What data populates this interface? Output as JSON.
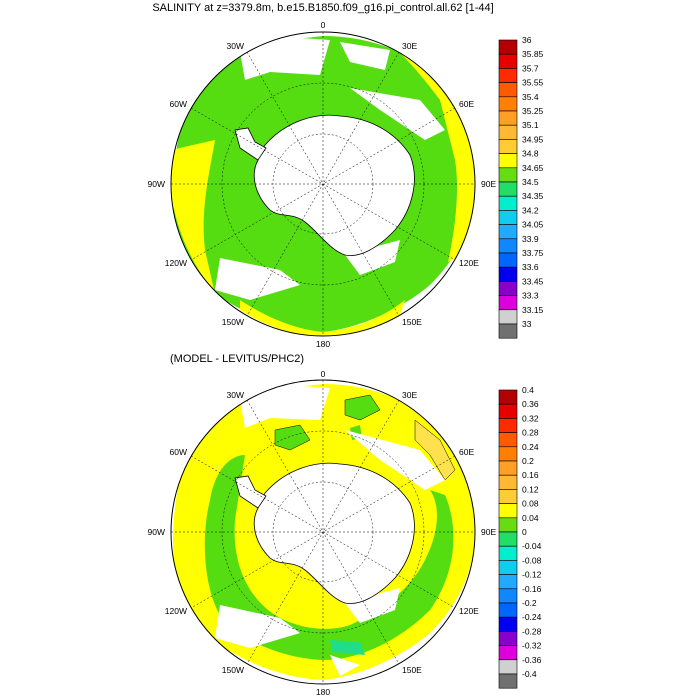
{
  "panels": [
    {
      "title": "SALINITY at z=3379.8m, b.e15.B1850.f09_g16.pi_control.all.62 [1-44]",
      "lon_labels": {
        "top": "0",
        "ne": "30E",
        "e1": "60E",
        "e2": "90E",
        "e3": "120E",
        "se": "150E",
        "bottom": "180",
        "sw": "150W",
        "w3": "120W",
        "w2": "90W",
        "w1": "60W",
        "nw": "30W"
      },
      "colorbar": {
        "labels": [
          "36",
          "35.85",
          "35.7",
          "35.55",
          "35.4",
          "35.25",
          "35.1",
          "34.95",
          "34.8",
          "34.65",
          "34.5",
          "34.35",
          "34.2",
          "34.05",
          "33.9",
          "33.75",
          "33.6",
          "33.45",
          "33.3",
          "33.15",
          "33"
        ],
        "colors": [
          "#b30000",
          "#e60000",
          "#ff2a00",
          "#ff5a00",
          "#ff8000",
          "#ff9f26",
          "#ffb833",
          "#ffcc33",
          "#ffff00",
          "#66dd11",
          "#22dd66",
          "#00eecc",
          "#11ccee",
          "#22aaff",
          "#1188ff",
          "#0066ff",
          "#0000ee",
          "#8800cc",
          "#dd00dd",
          "#d0d0d0",
          "#707070"
        ]
      }
    },
    {
      "title": "(MODEL - LEVITUS/PHC2)",
      "lon_labels": {
        "top": "0",
        "ne": "30E",
        "e1": "60E",
        "e2": "90E",
        "e3": "120E",
        "se": "150E",
        "bottom": "180",
        "sw": "150W",
        "w3": "120W",
        "w2": "90W",
        "w1": "60W",
        "nw": "30W"
      },
      "colorbar": {
        "labels": [
          "0.4",
          "0.36",
          "0.32",
          "0.28",
          "0.24",
          "0.2",
          "0.16",
          "0.12",
          "0.08",
          "0.04",
          "0",
          "-0.04",
          "-0.08",
          "-0.12",
          "-0.16",
          "-0.2",
          "-0.24",
          "-0.28",
          "-0.32",
          "-0.36",
          "-0.4"
        ],
        "colors": [
          "#b30000",
          "#e60000",
          "#ff2a00",
          "#ff5a00",
          "#ff8000",
          "#ff9f26",
          "#ffb833",
          "#ffcc33",
          "#ffff00",
          "#66dd11",
          "#22dd66",
          "#00eecc",
          "#11ccee",
          "#22aaff",
          "#1188ff",
          "#0066ff",
          "#0000ee",
          "#8800cc",
          "#dd00dd",
          "#d0d0d0",
          "#707070"
        ]
      }
    }
  ],
  "map_colors": {
    "green": "#55dd11",
    "yellow": "#ffff00",
    "pale_yellow": "#ffe14d",
    "cyan": "#22dd88",
    "land": "#ffffff",
    "line": "#000000"
  }
}
